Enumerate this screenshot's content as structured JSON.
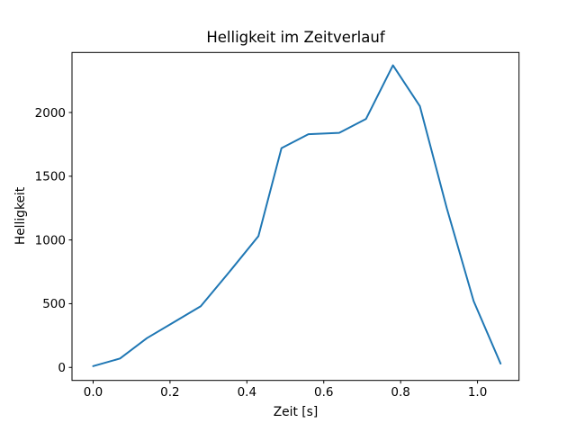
{
  "window": {
    "background": "#ffffff",
    "text_color": "#000000",
    "axis_color": "#000000"
  },
  "chart_data": {
    "type": "line",
    "title": "Helligkeit im Zeitverlauf",
    "xlabel": "Zeit [s]",
    "ylabel": "Helligkeit",
    "series": [
      {
        "name": "Helligkeit",
        "x": [
          0.0,
          0.07,
          0.14,
          0.21,
          0.28,
          0.36,
          0.43,
          0.49,
          0.56,
          0.64,
          0.71,
          0.78,
          0.85,
          0.92,
          0.99,
          1.06
        ],
        "y": [
          10,
          70,
          230,
          355,
          480,
          770,
          1030,
          1720,
          1830,
          1840,
          1950,
          2370,
          2050,
          1250,
          520,
          30
        ],
        "color": "#1f77b4",
        "line_width": 2
      }
    ],
    "xlim": [
      -0.055,
      1.108
    ],
    "ylim": [
      -102,
      2471
    ],
    "xticks": [
      0.0,
      0.2,
      0.4,
      0.6,
      0.8,
      1.0
    ],
    "xtick_labels": [
      "0.0",
      "0.2",
      "0.4",
      "0.6",
      "0.8",
      "1.0"
    ],
    "yticks": [
      0,
      500,
      1000,
      1500,
      2000
    ],
    "ytick_labels": [
      "0",
      "500",
      "1000",
      "1500",
      "2000"
    ],
    "grid": false,
    "legend_position": "none"
  }
}
